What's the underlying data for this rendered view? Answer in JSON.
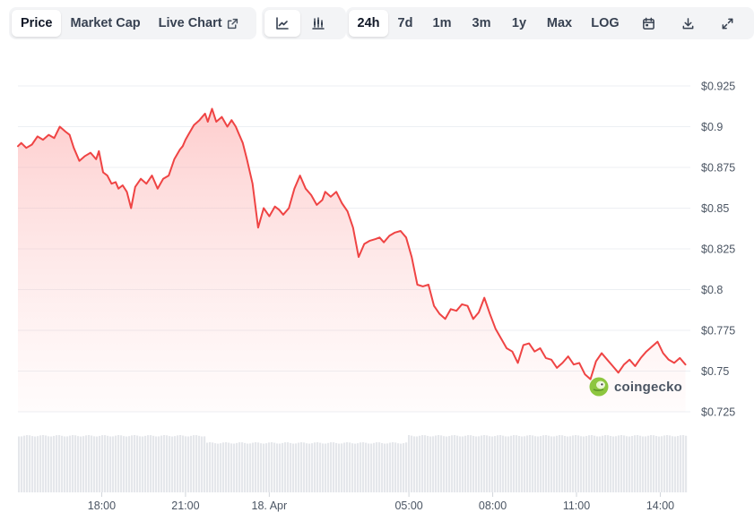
{
  "toolbar": {
    "metric_tabs": [
      {
        "label": "Price",
        "active": true
      },
      {
        "label": "Market Cap",
        "active": false
      },
      {
        "label": "Live Chart",
        "active": false,
        "icon": "external-link-icon"
      }
    ],
    "chart_type_buttons": [
      {
        "icon": "line-chart-icon",
        "active": true
      },
      {
        "icon": "candlestick-icon",
        "active": false
      }
    ],
    "range_buttons": [
      {
        "label": "24h",
        "active": true
      },
      {
        "label": "7d",
        "active": false
      },
      {
        "label": "1m",
        "active": false
      },
      {
        "label": "3m",
        "active": false
      },
      {
        "label": "1y",
        "active": false
      },
      {
        "label": "Max",
        "active": false
      },
      {
        "label": "LOG",
        "active": false
      }
    ],
    "action_icons": [
      "calendar-icon",
      "download-icon",
      "expand-icon"
    ]
  },
  "watermark": {
    "text": "coingecko",
    "icon": "coingecko-logo-icon"
  },
  "colors": {
    "line": "#ef4444",
    "area_top": "#fecaca",
    "grid": "#eceff3",
    "volume": "#e5e7eb",
    "active_bg": "#ffffff",
    "group_bg": "#f3f4f6"
  },
  "chart_data": {
    "type": "area",
    "x_tick_labels": [
      "18:00",
      "21:00",
      "18. Apr",
      "05:00",
      "08:00",
      "11:00",
      "14:00"
    ],
    "x_tick_hours": [
      3,
      6,
      9,
      14,
      17,
      20,
      23
    ],
    "y_tick_labels": [
      "$0.925",
      "$0.9",
      "$0.875",
      "$0.85",
      "$0.825",
      "$0.8",
      "$0.775",
      "$0.75",
      "$0.725"
    ],
    "y_ticks": [
      0.925,
      0.9,
      0.875,
      0.85,
      0.825,
      0.8,
      0.775,
      0.75,
      0.725
    ],
    "ylim": [
      0.725,
      0.925
    ],
    "xlim_hours": [
      0,
      23.98
    ],
    "x_hours_note": "hours after 15:00 of Apr 17",
    "series": [
      {
        "x": [
          0,
          0.12,
          0.3,
          0.5,
          0.7,
          0.9,
          1.1,
          1.3,
          1.5,
          1.7,
          1.85,
          2.0,
          2.2,
          2.4,
          2.6,
          2.8,
          2.9,
          3.05,
          3.2,
          3.35,
          3.5,
          3.6,
          3.75,
          3.9,
          4.05,
          4.2,
          4.4,
          4.6,
          4.8,
          5.0,
          5.2,
          5.4,
          5.6,
          5.8,
          5.9,
          6.0,
          6.1,
          6.3,
          6.5,
          6.7,
          6.8,
          6.95,
          7.1,
          7.3,
          7.5,
          7.65,
          7.8,
          7.9,
          8.05,
          8.2,
          8.4,
          8.6,
          8.8,
          9.0,
          9.2,
          9.35,
          9.5,
          9.7,
          9.9,
          10.1,
          10.3,
          10.5,
          10.7,
          10.9,
          11.0,
          11.2,
          11.4,
          11.6,
          11.8,
          12.0,
          12.2,
          12.4,
          12.6,
          12.8,
          12.95,
          13.1,
          13.3,
          13.5,
          13.7,
          13.9,
          14.1,
          14.3,
          14.5,
          14.7,
          14.9,
          15.1,
          15.3,
          15.5,
          15.7,
          15.9,
          16.1,
          16.3,
          16.5,
          16.7,
          16.9,
          17.1,
          17.3,
          17.5,
          17.7,
          17.9,
          18.1,
          18.3,
          18.5,
          18.7,
          18.9,
          19.1,
          19.3,
          19.5,
          19.7,
          19.9,
          20.1,
          20.3,
          20.5,
          20.7,
          20.9,
          21.1,
          21.3,
          21.5,
          21.7,
          21.9,
          22.1,
          22.3,
          22.5,
          22.7,
          22.9,
          23.1,
          23.3,
          23.5,
          23.7,
          23.9
        ],
        "y": [
          0.888,
          0.89,
          0.887,
          0.889,
          0.894,
          0.892,
          0.895,
          0.893,
          0.9,
          0.897,
          0.895,
          0.887,
          0.879,
          0.882,
          0.884,
          0.88,
          0.885,
          0.872,
          0.87,
          0.865,
          0.866,
          0.862,
          0.864,
          0.86,
          0.85,
          0.863,
          0.868,
          0.865,
          0.87,
          0.862,
          0.868,
          0.87,
          0.88,
          0.886,
          0.888,
          0.892,
          0.895,
          0.901,
          0.904,
          0.908,
          0.903,
          0.911,
          0.903,
          0.906,
          0.9,
          0.904,
          0.9,
          0.896,
          0.89,
          0.88,
          0.865,
          0.838,
          0.85,
          0.845,
          0.851,
          0.849,
          0.846,
          0.85,
          0.862,
          0.87,
          0.862,
          0.858,
          0.852,
          0.855,
          0.86,
          0.857,
          0.86,
          0.853,
          0.848,
          0.838,
          0.82,
          0.828,
          0.83,
          0.831,
          0.832,
          0.829,
          0.833,
          0.835,
          0.836,
          0.832,
          0.82,
          0.803,
          0.802,
          0.803,
          0.79,
          0.785,
          0.782,
          0.788,
          0.787,
          0.791,
          0.79,
          0.782,
          0.786,
          0.795,
          0.785,
          0.776,
          0.77,
          0.764,
          0.762,
          0.755,
          0.766,
          0.767,
          0.762,
          0.764,
          0.758,
          0.757,
          0.752,
          0.755,
          0.759,
          0.754,
          0.755,
          0.748,
          0.745,
          0.756,
          0.761,
          0.757,
          0.753,
          0.749,
          0.754,
          0.757,
          0.753,
          0.758,
          0.762,
          0.765,
          0.768,
          0.761,
          0.757,
          0.755,
          0.758,
          0.754
        ]
      }
    ],
    "volume_hint": "flat uniform volume bars beneath price chart",
    "grid": true,
    "legend": "none"
  }
}
